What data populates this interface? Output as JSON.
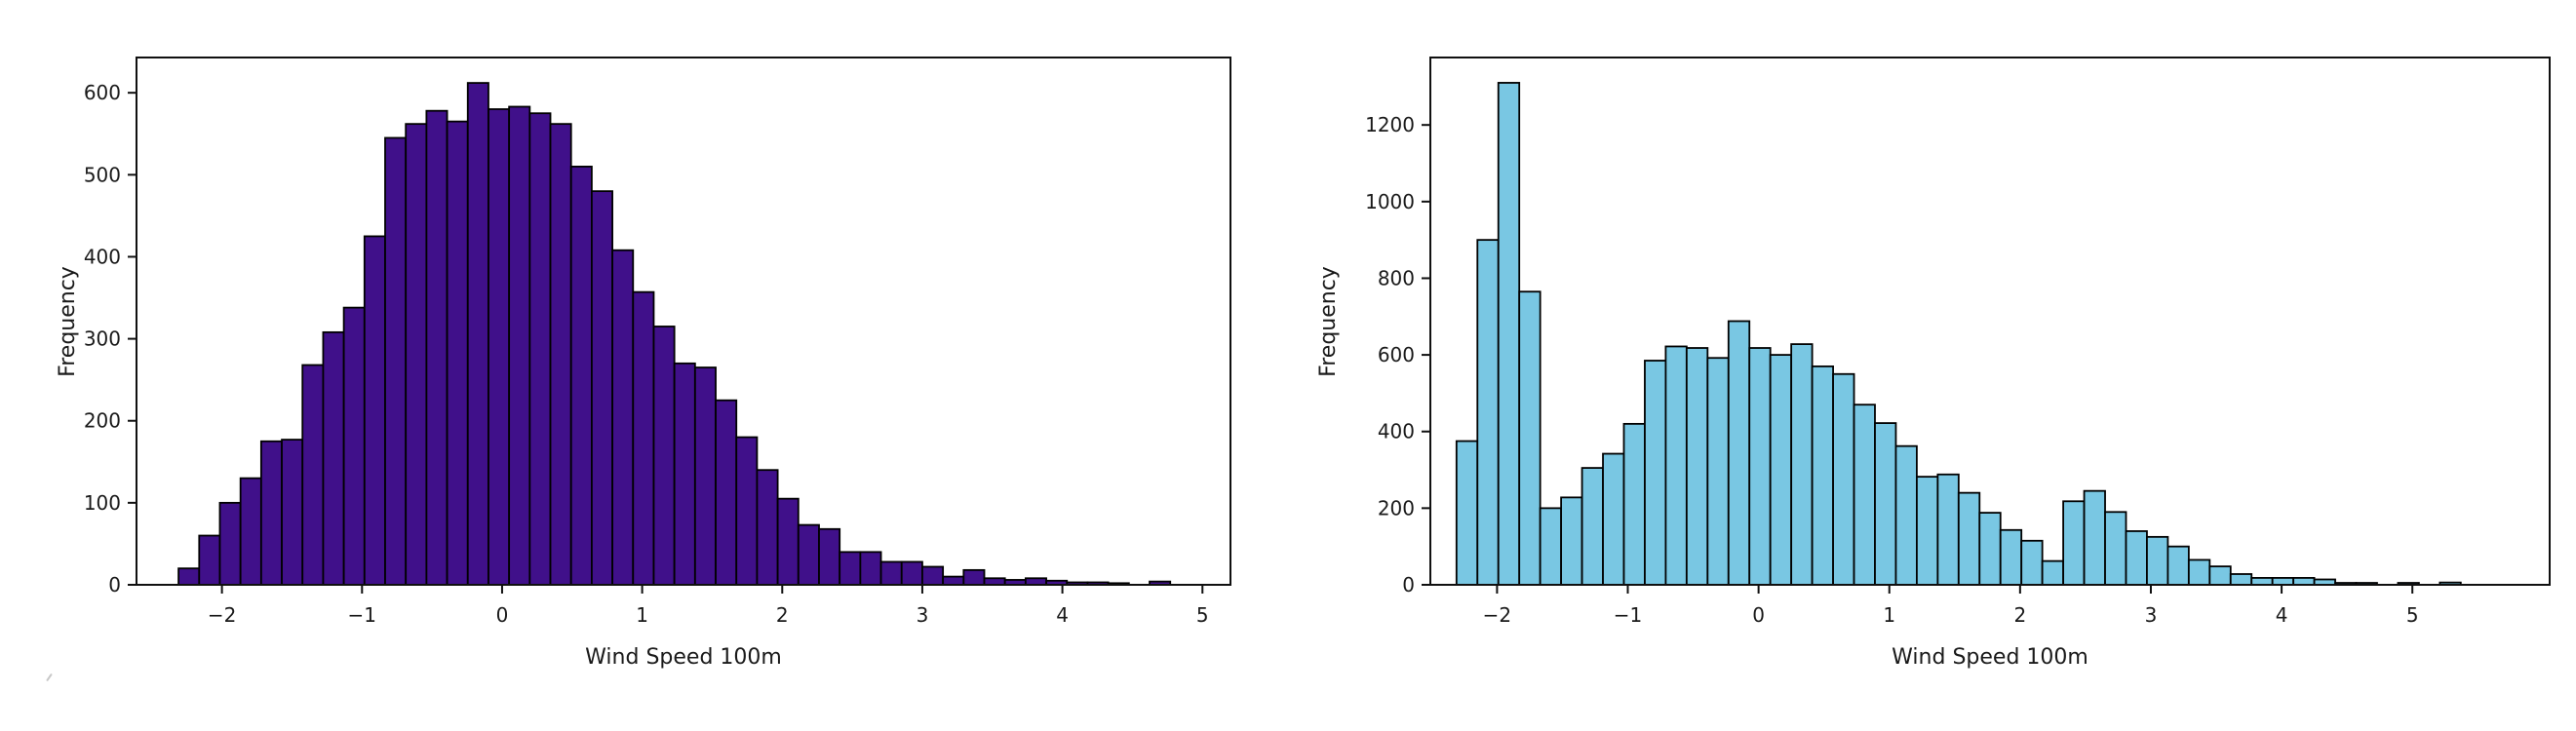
{
  "page": {
    "background": "#ffffff"
  },
  "chart_data": [
    {
      "type": "bar",
      "variant": "histogram",
      "title": "",
      "xlabel": "Wind Speed 100m",
      "ylabel": "Frequency",
      "bar_color": "#40108a",
      "edge_color": "#000000",
      "bin_start": -2.31,
      "bin_width": 0.1475,
      "frequencies": [
        20,
        60,
        100,
        130,
        175,
        177,
        268,
        308,
        338,
        425,
        545,
        562,
        578,
        565,
        612,
        580,
        583,
        575,
        562,
        510,
        480,
        408,
        357,
        315,
        270,
        265,
        225,
        180,
        140,
        105,
        73,
        68,
        40,
        40,
        28,
        28,
        22,
        10,
        18,
        8,
        6,
        8,
        5,
        3,
        3,
        2,
        0,
        4
      ],
      "xlim": [
        -2.61,
        5.2
      ],
      "ylim": [
        0,
        643
      ],
      "xtick_labels": [
        "−2",
        "−1",
        "0",
        "1",
        "2",
        "3",
        "4",
        "5"
      ],
      "xtick_values": [
        -2,
        -1,
        0,
        1,
        2,
        3,
        4,
        5
      ],
      "ytick_labels": [
        "0",
        "100",
        "200",
        "300",
        "400",
        "500",
        "600"
      ],
      "ytick_values": [
        0,
        100,
        200,
        300,
        400,
        500,
        600
      ],
      "grid": false,
      "legend": null
    },
    {
      "type": "bar",
      "variant": "histogram",
      "title": "",
      "xlabel": "Wind Speed 100m",
      "ylabel": "Frequency",
      "bar_color": "#79c7e3",
      "edge_color": "#000000",
      "bin_start": -2.31,
      "bin_width": 0.16,
      "frequencies": [
        375,
        900,
        1310,
        765,
        200,
        228,
        305,
        342,
        420,
        585,
        622,
        618,
        592,
        688,
        618,
        600,
        628,
        570,
        550,
        470,
        422,
        362,
        282,
        288,
        240,
        188,
        143,
        115,
        62,
        218,
        245,
        190,
        140,
        125,
        100,
        65,
        48,
        28,
        18,
        18,
        18,
        14,
        5,
        5,
        0,
        5,
        0,
        6
      ],
      "xlim": [
        -2.51,
        6.05
      ],
      "ylim": [
        0,
        1376
      ],
      "xtick_labels": [
        "−2",
        "−1",
        "0",
        "1",
        "2",
        "3",
        "4",
        "5"
      ],
      "xtick_values": [
        -2,
        -1,
        0,
        1,
        2,
        3,
        4,
        5
      ],
      "ytick_labels": [
        "0",
        "200",
        "400",
        "600",
        "800",
        "1000",
        "1200"
      ],
      "ytick_values": [
        0,
        200,
        400,
        600,
        800,
        1000,
        1200
      ],
      "grid": false,
      "legend": null
    }
  ]
}
